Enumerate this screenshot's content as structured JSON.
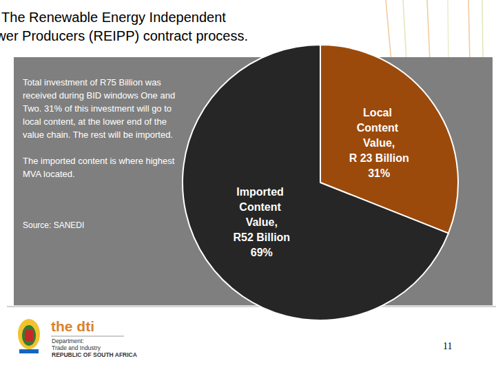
{
  "chart_data": {
    "type": "pie",
    "title": "The Renewable Energy Independent\nPower Producers (REIPP) contract process.",
    "categories": [
      "Local Content Value,",
      "Imported Content Value,"
    ],
    "values": [
      31,
      69
    ],
    "value_labels": [
      "31%",
      "69%"
    ],
    "amounts": [
      23,
      52
    ],
    "amount_labels": [
      "R 23 Billion",
      "R52 Billion"
    ],
    "colors": [
      "#9c4a0b",
      "#262626"
    ],
    "data_labels": true
  },
  "slide": {
    "text_box": [
      "Total investment of R75 Billion was received during BID windows One and Two.  31% of this investment will go to local content, at the lower end of the value chain. The rest will be imported.",
      "The imported content is where highest MVA located."
    ],
    "source": "Source: SANEDI",
    "footer": {
      "logo": "the dti",
      "department": [
        "Department:",
        "Trade and Industry",
        "REPUBLIC OF SOUTH AFRICA"
      ],
      "page": "11"
    }
  }
}
